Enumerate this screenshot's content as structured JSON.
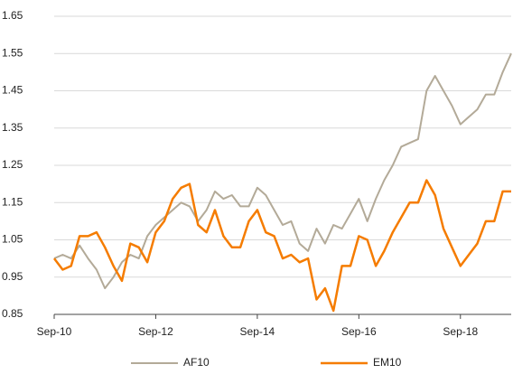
{
  "chart_data": {
    "type": "line",
    "categories": [
      "Sep-10",
      null,
      null,
      null,
      null,
      null,
      null,
      null,
      null,
      null,
      null,
      null,
      "Sep-12",
      null,
      null,
      null,
      null,
      null,
      null,
      null,
      null,
      null,
      null,
      null,
      "Sep-14",
      null,
      null,
      null,
      null,
      null,
      null,
      null,
      null,
      null,
      null,
      null,
      "Sep-16",
      null,
      null,
      null,
      null,
      null,
      null,
      null,
      null,
      null,
      null,
      null,
      "Sep-18",
      null,
      null,
      null,
      null,
      null,
      null
    ],
    "series": [
      {
        "name": "AF10",
        "color": "#b3aa98",
        "values": [
          1.0,
          1.01,
          1.0,
          1.035,
          1.0,
          0.97,
          0.92,
          0.95,
          0.99,
          1.01,
          1.0,
          1.06,
          1.09,
          1.11,
          1.13,
          1.15,
          1.14,
          1.1,
          1.13,
          1.18,
          1.16,
          1.17,
          1.14,
          1.14,
          1.19,
          1.17,
          1.13,
          1.09,
          1.1,
          1.04,
          1.02,
          1.08,
          1.04,
          1.09,
          1.08,
          1.12,
          1.16,
          1.1,
          1.16,
          1.21,
          1.25,
          1.3,
          1.31,
          1.32,
          1.45,
          1.49,
          1.45,
          1.41,
          1.36,
          1.38,
          1.4,
          1.44,
          1.44,
          1.5,
          1.55
        ]
      },
      {
        "name": "EM10",
        "color": "#f57c00",
        "values": [
          1.0,
          0.97,
          0.98,
          1.06,
          1.06,
          1.07,
          1.03,
          0.98,
          0.94,
          1.04,
          1.03,
          0.99,
          1.07,
          1.1,
          1.16,
          1.19,
          1.2,
          1.09,
          1.07,
          1.13,
          1.06,
          1.03,
          1.03,
          1.1,
          1.13,
          1.07,
          1.06,
          1.0,
          1.01,
          0.99,
          1.0,
          0.89,
          0.92,
          0.86,
          0.98,
          0.98,
          1.06,
          1.05,
          0.98,
          1.02,
          1.07,
          1.11,
          1.15,
          1.15,
          1.21,
          1.17,
          1.08,
          1.03,
          0.98,
          1.01,
          1.04,
          1.1,
          1.1,
          1.18,
          1.18
        ]
      }
    ],
    "ylim": [
      0.85,
      1.65
    ],
    "yticks": [
      0.85,
      0.95,
      1.05,
      1.15,
      1.25,
      1.35,
      1.45,
      1.55,
      1.65
    ],
    "grid": true,
    "legend": "bottom"
  }
}
